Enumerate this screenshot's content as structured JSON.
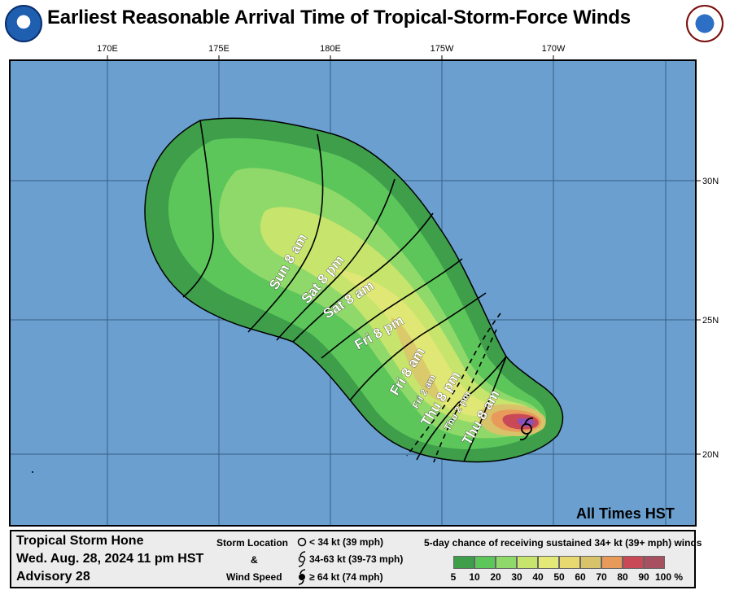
{
  "title": "Earliest Reasonable Arrival Time of Tropical-Storm-Force Winds",
  "logos": {
    "left": "noaa-logo",
    "right": "nws-logo"
  },
  "map": {
    "lon_labels": [
      "170E",
      "175E",
      "180E",
      "175W",
      "170W"
    ],
    "lat_labels": [
      "30N",
      "25N",
      "20N"
    ],
    "note": "All Times HST",
    "colors": {
      "ocean": "#6a9fcf",
      "green_dark": "#3e9e4a",
      "green": "#5cc65a",
      "green_light": "#8fd96a",
      "yellow_green": "#c7e46d",
      "yellow": "#e4e876",
      "tan": "#d9c36a",
      "orange": "#e89a5a",
      "red": "#c94a56",
      "purple": "#8d4fb8"
    },
    "time_labels": [
      {
        "text": "Sun 8 am"
      },
      {
        "text": "Sat 8 pm"
      },
      {
        "text": "Sat 8 am"
      },
      {
        "text": "Fri 8 pm"
      },
      {
        "text": "Fri 8 am"
      },
      {
        "text": "Fri 2 am"
      },
      {
        "text": "Thu 8 pm"
      },
      {
        "text": "Thu 2 pm"
      },
      {
        "text": "Thu 8 am"
      }
    ],
    "storm_symbol": "tropical-storm-icon"
  },
  "legend": {
    "storm_name": "Tropical Storm Hone",
    "date": "Wed. Aug. 28, 2024   11 pm HST",
    "advisory": "Advisory 28",
    "storm_location_label": "Storm Location",
    "amp": "&",
    "wind_speed_label": "Wind Speed",
    "symbols": [
      {
        "icon": "circle-icon",
        "text": "< 34 kt (39 mph)"
      },
      {
        "icon": "tropical-storm-icon",
        "text": "34-63 kt (39-73 mph)"
      },
      {
        "icon": "hurricane-icon",
        "text": "≥ 64 kt (74 mph)"
      }
    ],
    "prob_title": "5-day chance of receiving sustained 34+ kt (39+ mph) winds",
    "prob_colors": [
      "#3e9e4a",
      "#5cc65a",
      "#8fd96a",
      "#c7e46d",
      "#e4e876",
      "#e8d870",
      "#d9c36a",
      "#e89a5a",
      "#c94a56",
      "#a7505f",
      "#b76ac8"
    ],
    "prob_labels": [
      "5",
      "10",
      "20",
      "30",
      "40",
      "50",
      "60",
      "70",
      "80",
      "90",
      "100 %"
    ]
  }
}
